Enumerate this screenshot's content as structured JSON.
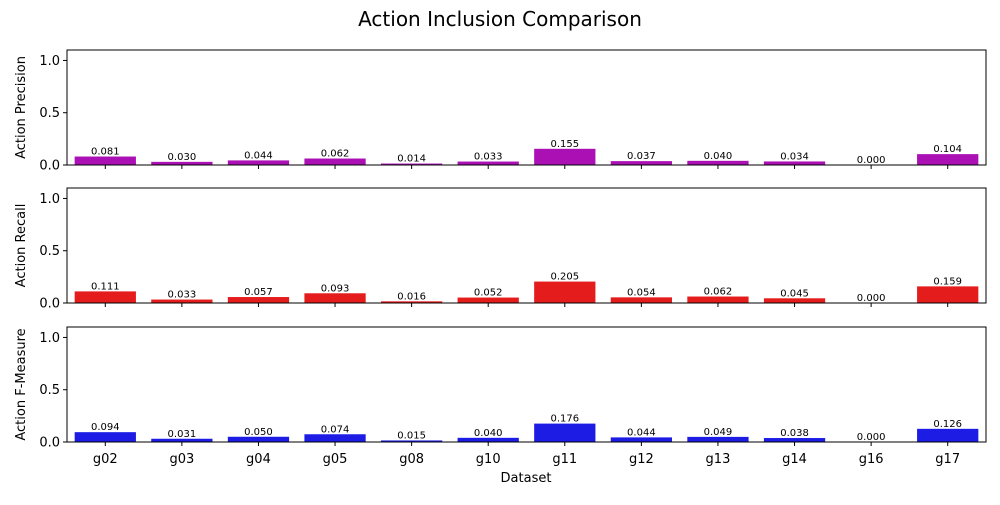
{
  "chart_data": {
    "type": "bar",
    "title": "Action Inclusion Comparison",
    "xlabel": "Dataset",
    "categories": [
      "g02",
      "g03",
      "g04",
      "g05",
      "g08",
      "g10",
      "g11",
      "g12",
      "g13",
      "g14",
      "g16",
      "g17"
    ],
    "ylim": [
      0,
      1.1
    ],
    "yticks": [
      "0.0",
      "0.5",
      "1.0"
    ],
    "grid": false,
    "panels": [
      {
        "ylabel": "Action Precision",
        "color": "#aa10b4",
        "values": [
          0.081,
          0.03,
          0.044,
          0.062,
          0.014,
          0.033,
          0.155,
          0.037,
          0.04,
          0.034,
          0.0,
          0.104
        ],
        "value_labels": [
          "0.081",
          "0.030",
          "0.044",
          "0.062",
          "0.014",
          "0.033",
          "0.155",
          "0.037",
          "0.040",
          "0.034",
          "0.000",
          "0.104"
        ]
      },
      {
        "ylabel": "Action Recall",
        "color": "#e51c1c",
        "values": [
          0.111,
          0.033,
          0.057,
          0.093,
          0.016,
          0.052,
          0.205,
          0.054,
          0.062,
          0.045,
          0.0,
          0.159
        ],
        "value_labels": [
          "0.111",
          "0.033",
          "0.057",
          "0.093",
          "0.016",
          "0.052",
          "0.205",
          "0.054",
          "0.062",
          "0.045",
          "0.000",
          "0.159"
        ]
      },
      {
        "ylabel": "Action F-Measure",
        "color": "#1c1ce5",
        "values": [
          0.094,
          0.031,
          0.05,
          0.074,
          0.015,
          0.04,
          0.176,
          0.044,
          0.049,
          0.038,
          0.0,
          0.126
        ],
        "value_labels": [
          "0.094",
          "0.031",
          "0.050",
          "0.074",
          "0.015",
          "0.040",
          "0.176",
          "0.044",
          "0.049",
          "0.038",
          "0.000",
          "0.126"
        ]
      }
    ]
  }
}
